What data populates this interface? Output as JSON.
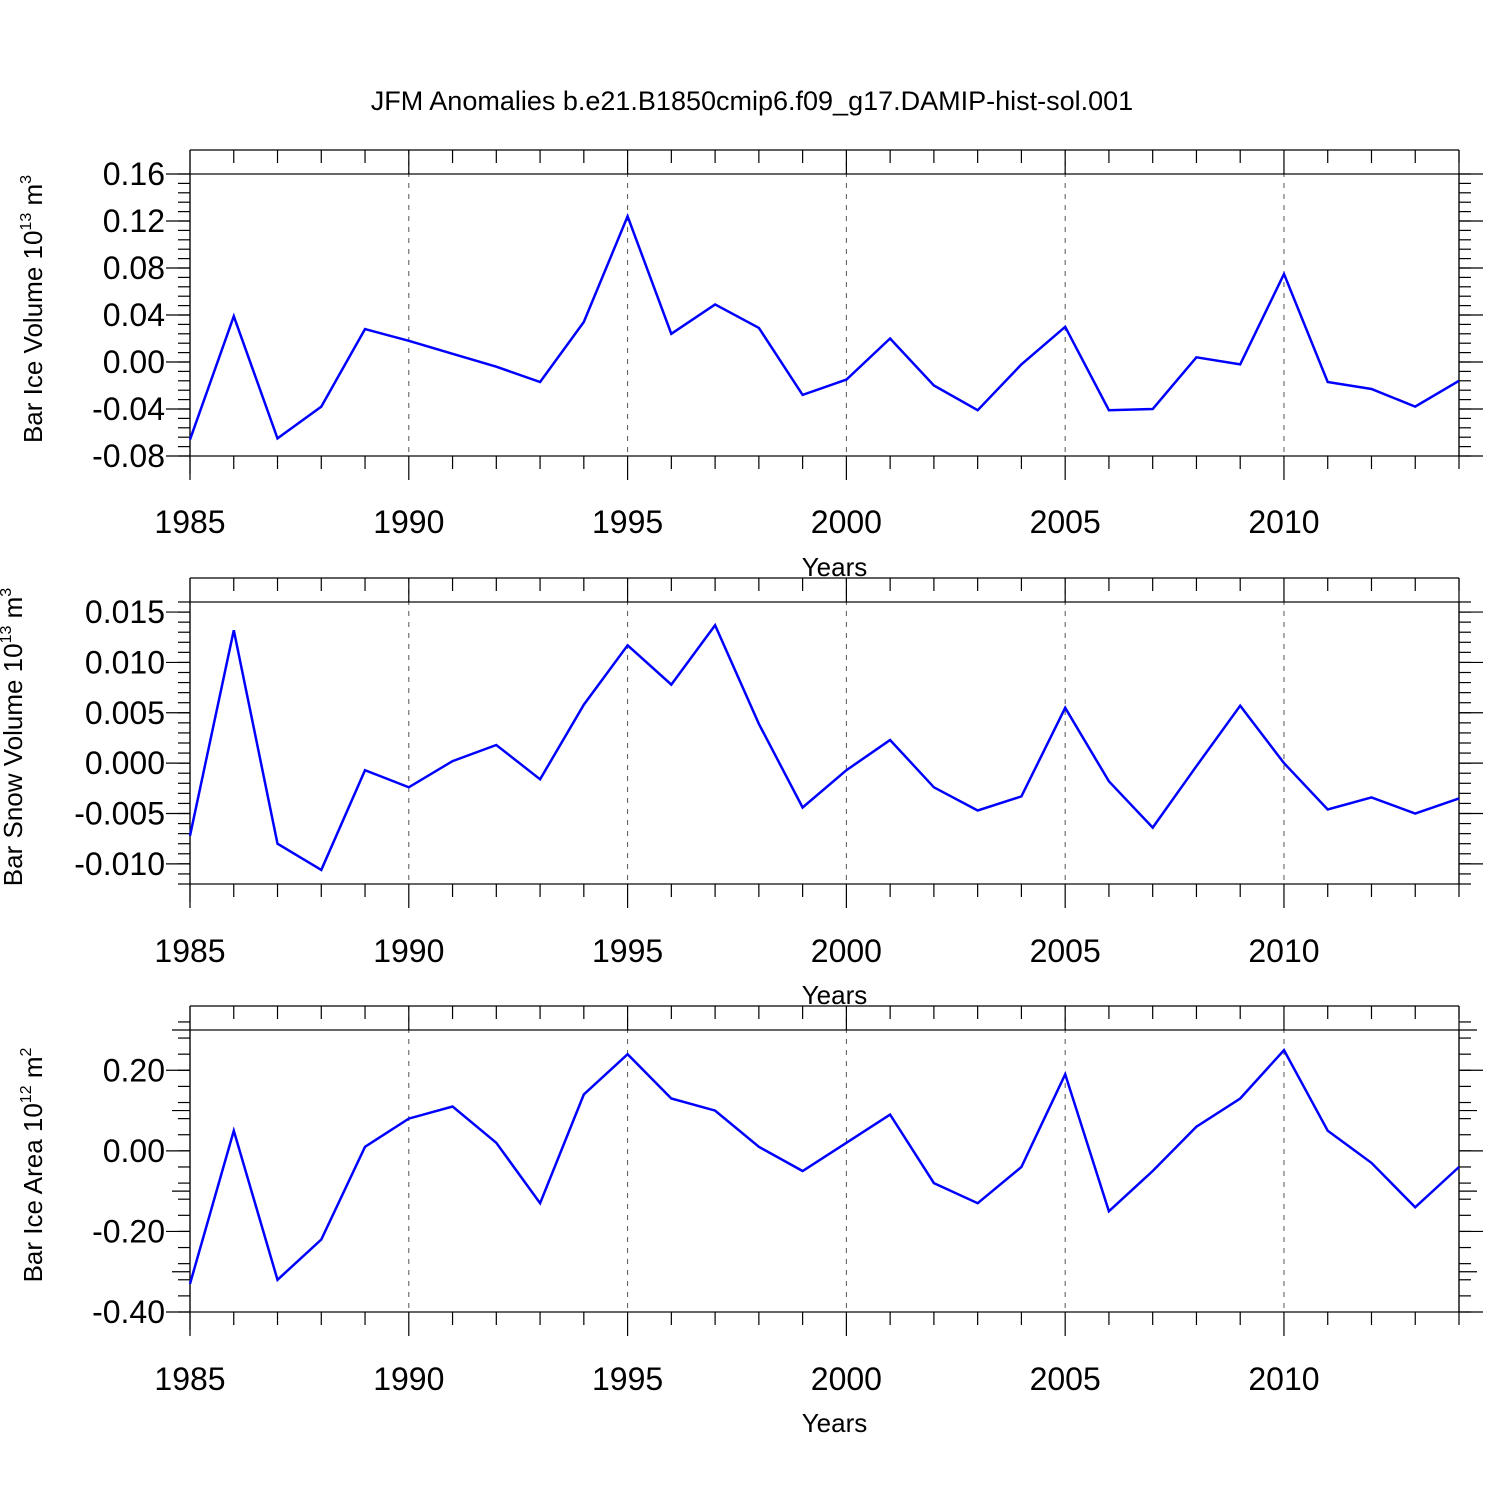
{
  "title": "JFM Anomalies b.e21.B1850cmip6.f09_g17.DAMIP-hist-sol.001",
  "colors": {
    "line": "#0000ff",
    "axes": "#000000",
    "grid": "#555555"
  },
  "chart_data": [
    {
      "type": "line",
      "ylabel": {
        "text": "Bar Ice Volume 10",
        "exponent": "13",
        "unit": " m",
        "unit_exponent": "3"
      },
      "xlabel": "Years",
      "xlim": [
        1985,
        2014
      ],
      "ylim": [
        -0.08,
        0.16
      ],
      "x_ticks": [
        1985,
        1990,
        1995,
        2000,
        2005,
        2010
      ],
      "x_tick_labels": [
        "1985",
        "1990",
        "1995",
        "2000",
        "2005",
        "2010"
      ],
      "y_ticks": [
        -0.08,
        -0.04,
        0.0,
        0.04,
        0.08,
        0.12,
        0.16
      ],
      "y_tick_labels": [
        "-0.08",
        "-0.04",
        "0.00",
        "0.04",
        "0.08",
        "0.12",
        "0.16"
      ],
      "y_minor_step": 0.008,
      "grid": "dashed vertical at major x ticks",
      "x": [
        1985,
        1986,
        1987,
        1988,
        1989,
        1990,
        1991,
        1992,
        1993,
        1994,
        1995,
        1996,
        1997,
        1998,
        1999,
        2000,
        2001,
        2002,
        2003,
        2004,
        2005,
        2006,
        2007,
        2008,
        2009,
        2010,
        2011,
        2012,
        2013,
        2014
      ],
      "values": [
        -0.066,
        0.039,
        -0.065,
        -0.038,
        0.028,
        0.018,
        0.007,
        -0.004,
        -0.017,
        0.034,
        0.124,
        0.024,
        0.049,
        0.029,
        -0.028,
        -0.015,
        0.02,
        -0.02,
        -0.041,
        -0.002,
        0.03,
        -0.041,
        -0.04,
        0.004,
        -0.002,
        0.075,
        -0.017,
        -0.023,
        -0.038,
        -0.016
      ]
    },
    {
      "type": "line",
      "ylabel": {
        "text": "Bar Snow Volume 10",
        "exponent": "13",
        "unit": " m",
        "unit_exponent": "3"
      },
      "xlabel": "Years",
      "xlim": [
        1985,
        2014
      ],
      "ylim": [
        -0.012,
        0.016
      ],
      "x_ticks": [
        1985,
        1990,
        1995,
        2000,
        2005,
        2010
      ],
      "x_tick_labels": [
        "1985",
        "1990",
        "1995",
        "2000",
        "2005",
        "2010"
      ],
      "y_ticks": [
        -0.01,
        -0.005,
        0.0,
        0.005,
        0.01,
        0.015
      ],
      "y_tick_labels": [
        "-0.010",
        "-0.005",
        "0.000",
        "0.005",
        "0.010",
        "0.015"
      ],
      "y_minor_step": 0.001,
      "grid": "dashed vertical at major x ticks",
      "x": [
        1985,
        1986,
        1987,
        1988,
        1989,
        1990,
        1991,
        1992,
        1993,
        1994,
        1995,
        1996,
        1997,
        1998,
        1999,
        2000,
        2001,
        2002,
        2003,
        2004,
        2005,
        2006,
        2007,
        2008,
        2009,
        2010,
        2011,
        2012,
        2013,
        2014
      ],
      "values": [
        -0.0072,
        0.0132,
        -0.008,
        -0.0106,
        -0.0007,
        -0.0024,
        0.0002,
        0.0018,
        -0.0016,
        0.0058,
        0.0117,
        0.0078,
        0.0137,
        0.0039,
        -0.0044,
        -0.0007,
        0.0023,
        -0.0024,
        -0.0047,
        -0.0033,
        0.0055,
        -0.0018,
        -0.0064,
        -0.0003,
        0.0057,
        0.0,
        -0.0046,
        -0.0034,
        -0.005,
        -0.0035
      ]
    },
    {
      "type": "line",
      "ylabel": {
        "text": "Bar Ice Area 10",
        "exponent": "12",
        "unit": " m",
        "unit_exponent": "2"
      },
      "xlabel": "Years",
      "xlim": [
        1985,
        2014
      ],
      "ylim": [
        -0.4,
        0.3
      ],
      "x_ticks": [
        1985,
        1990,
        1995,
        2000,
        2005,
        2010
      ],
      "x_tick_labels": [
        "1985",
        "1990",
        "1995",
        "2000",
        "2005",
        "2010"
      ],
      "y_ticks": [
        -0.4,
        -0.2,
        0.0,
        0.2
      ],
      "y_tick_labels": [
        "-0.40",
        "-0.20",
        "0.00",
        "0.20"
      ],
      "y_mid_ticks": [
        -0.3,
        -0.1,
        0.1,
        0.3
      ],
      "y_minor_step": 0.04,
      "grid": "dashed vertical at major x ticks",
      "x": [
        1985,
        1986,
        1987,
        1988,
        1989,
        1990,
        1991,
        1992,
        1993,
        1994,
        1995,
        1996,
        1997,
        1998,
        1999,
        2000,
        2001,
        2002,
        2003,
        2004,
        2005,
        2006,
        2007,
        2008,
        2009,
        2010,
        2011,
        2012,
        2013,
        2014
      ],
      "values": [
        -0.33,
        0.05,
        -0.32,
        -0.22,
        0.01,
        0.08,
        0.11,
        0.02,
        -0.13,
        0.14,
        0.24,
        0.13,
        0.1,
        0.01,
        -0.05,
        0.02,
        0.09,
        -0.08,
        -0.13,
        -0.04,
        0.19,
        -0.15,
        -0.05,
        0.06,
        0.13,
        0.25,
        0.05,
        -0.03,
        -0.14,
        -0.04
      ]
    }
  ]
}
